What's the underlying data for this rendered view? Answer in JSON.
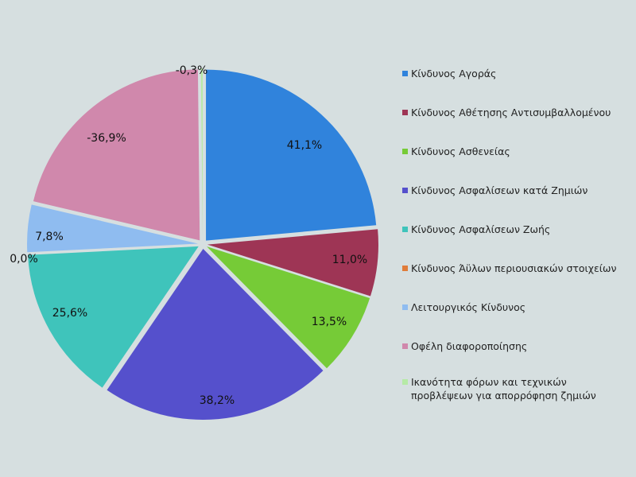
{
  "chart_data": {
    "type": "pie",
    "title": "",
    "slices": [
      {
        "label": "Κίνδυνος Αγοράς",
        "value": 41.1,
        "display": "41,1%",
        "color": "#3083dc"
      },
      {
        "label": "Κίνδυνος Αθέτησης Αντισυμβαλλομένου",
        "value": 11.0,
        "display": "11,0%",
        "color": "#9e3555"
      },
      {
        "label": "Κίνδυνος Ασθενείας",
        "value": 13.5,
        "display": "13,5%",
        "color": "#76cb37"
      },
      {
        "label": "Κίνδυνος Ασφαλίσεων κατά Ζημιών",
        "value": 38.2,
        "display": "38,2%",
        "color": "#5550cc"
      },
      {
        "label": "Κίνδυνος Ασφαλίσεων Ζωής",
        "value": 25.6,
        "display": "25,6%",
        "color": "#3fc4bb"
      },
      {
        "label": "Κίνδυνος Άϋλων περιουσιακών στοιχείων",
        "value": 0.0,
        "display": "0,0%",
        "color": "#e07c3a"
      },
      {
        "label": "Λειτουργικός Κίνδυνος",
        "value": 7.8,
        "display": "7,8%",
        "color": "#8fbcf0"
      },
      {
        "label": "Οφέλη διαφοροποίησης",
        "value": -36.9,
        "display": "-36,9%",
        "color": "#d088ac"
      },
      {
        "label": "Ικανότητα φόρων και τεχνικών\nπροβλέψεων για απορρόφηση ζημιών",
        "value": -0.3,
        "display": "-0,3%",
        "color": "#b6eaa6"
      }
    ],
    "legend_position": "right"
  }
}
